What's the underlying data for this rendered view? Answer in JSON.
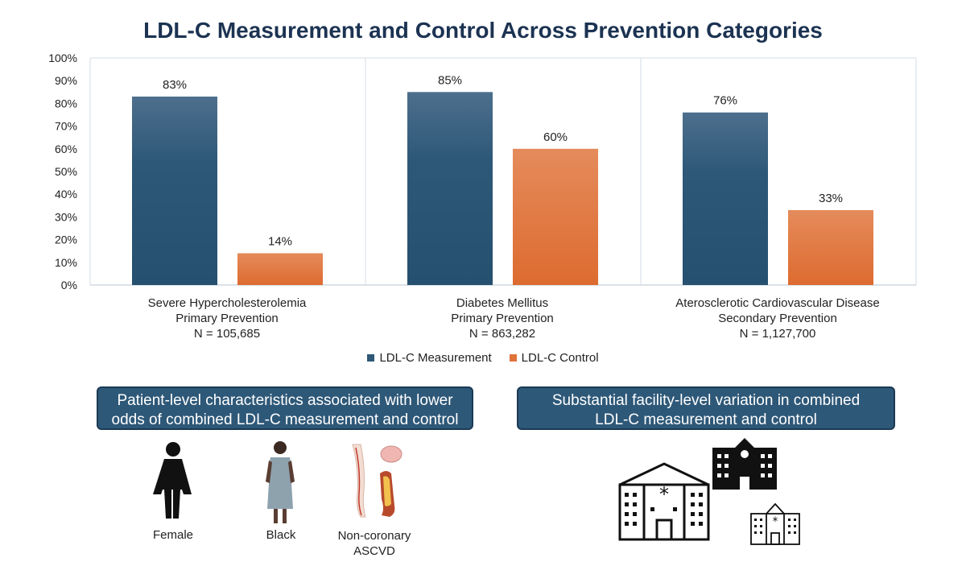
{
  "chart_data": {
    "type": "bar",
    "title": "LDL-C Measurement and Control Across Prevention Categories",
    "ylim": [
      0,
      100
    ],
    "yticks": [
      "0%",
      "10%",
      "20%",
      "30%",
      "40%",
      "50%",
      "60%",
      "70%",
      "80%",
      "90%",
      "100%"
    ],
    "categories": [
      [
        "Severe Hypercholesterolemia",
        "Primary Prevention",
        "N = 105,685"
      ],
      [
        "Diabetes Mellitus",
        "Primary Prevention",
        "N = 863,282"
      ],
      [
        "Aterosclerotic Cardiovascular Disease",
        "Secondary Prevention",
        "N = 1,127,700"
      ]
    ],
    "series": [
      {
        "name": "LDL-C Measurement",
        "values": [
          83,
          85,
          76
        ],
        "labels": [
          "83%",
          "85%",
          "76%"
        ],
        "color": "#2e5878"
      },
      {
        "name": "LDL-C Control",
        "values": [
          14,
          60,
          33
        ],
        "labels": [
          "14%",
          "60%",
          "33%"
        ],
        "color": "#e0733a"
      }
    ],
    "legend": "bottom"
  },
  "callouts": {
    "left": [
      "Patient-level characteristics associated with lower",
      "odds of combined LDL-C measurement and control"
    ],
    "right": [
      "Substantial facility-level variation in combined",
      "LDL-C measurement and control"
    ]
  },
  "icons": [
    {
      "name": "female-icon",
      "label": "Female"
    },
    {
      "name": "patient-icon",
      "label": "Black"
    },
    {
      "name": "vascular-icon",
      "label": "Non-coronary\nASCVD"
    }
  ],
  "facility_icons": [
    "hospital-large-icon",
    "hospital-top-icon",
    "hospital-small-icon"
  ]
}
